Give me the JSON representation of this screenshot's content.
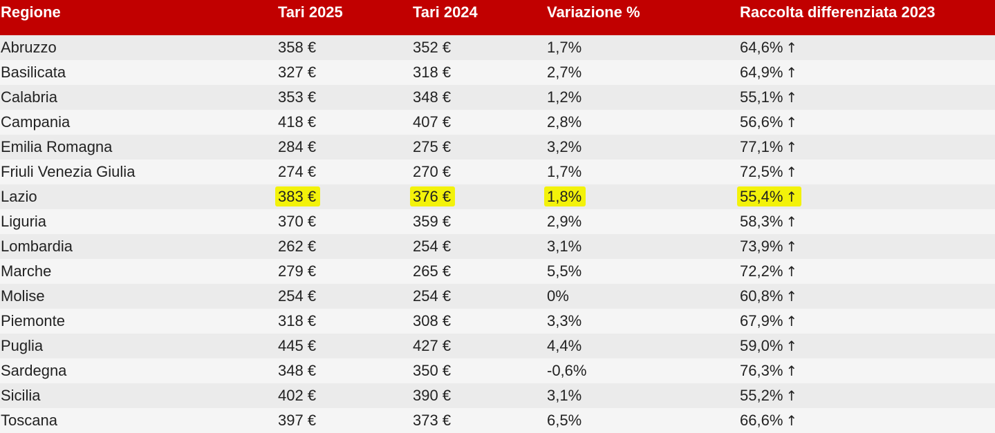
{
  "columns": [
    "Regione",
    "Tari 2025",
    "Tari 2024",
    "Variazione %",
    "Raccolta differenziata 2023"
  ],
  "trend_symbol": "↑",
  "highlight_color": "#f3f20a",
  "header_color": "#c10000",
  "rows": [
    {
      "regione": "Abruzzo",
      "tari_2025": "358 €",
      "tari_2024": "352 €",
      "variazione": "1,7%",
      "raccolta": "64,6%"
    },
    {
      "regione": "Basilicata",
      "tari_2025": "327 €",
      "tari_2024": "318 €",
      "variazione": "2,7%",
      "raccolta": "64,9%"
    },
    {
      "regione": "Calabria",
      "tari_2025": "353 €",
      "tari_2024": "348 €",
      "variazione": "1,2%",
      "raccolta": "55,1%"
    },
    {
      "regione": "Campania",
      "tari_2025": "418 €",
      "tari_2024": "407 €",
      "variazione": "2,8%",
      "raccolta": "56,6%"
    },
    {
      "regione": "Emilia Romagna",
      "tari_2025": "284 €",
      "tari_2024": "275 €",
      "variazione": "3,2%",
      "raccolta": "77,1%"
    },
    {
      "regione": "Friuli Venezia Giulia",
      "tari_2025": "274 €",
      "tari_2024": "270 €",
      "variazione": "1,7%",
      "raccolta": "72,5%"
    },
    {
      "regione": "Lazio",
      "tari_2025": "383 €",
      "tari_2024": "376 €",
      "variazione": "1,8%",
      "raccolta": "55,4%",
      "highlighted": true
    },
    {
      "regione": "Liguria",
      "tari_2025": "370 €",
      "tari_2024": "359 €",
      "variazione": "2,9%",
      "raccolta": "58,3%"
    },
    {
      "regione": "Lombardia",
      "tari_2025": "262 €",
      "tari_2024": "254 €",
      "variazione": "3,1%",
      "raccolta": "73,9%"
    },
    {
      "regione": "Marche",
      "tari_2025": "279 €",
      "tari_2024": "265 €",
      "variazione": "5,5%",
      "raccolta": "72,2%"
    },
    {
      "regione": "Molise",
      "tari_2025": "254 €",
      "tari_2024": "254 €",
      "variazione": "0%",
      "raccolta": "60,8%"
    },
    {
      "regione": "Piemonte",
      "tari_2025": "318 €",
      "tari_2024": "308 €",
      "variazione": "3,3%",
      "raccolta": "67,9%"
    },
    {
      "regione": "Puglia",
      "tari_2025": "445 €",
      "tari_2024": "427 €",
      "variazione": "4,4%",
      "raccolta": "59,0%"
    },
    {
      "regione": "Sardegna",
      "tari_2025": "348 €",
      "tari_2024": "350 €",
      "variazione": "-0,6%",
      "raccolta": "76,3%"
    },
    {
      "regione": "Sicilia",
      "tari_2025": "402 €",
      "tari_2024": "390 €",
      "variazione": "3,1%",
      "raccolta": "55,2%"
    },
    {
      "regione": "Toscana",
      "tari_2025": "397 €",
      "tari_2024": "373 €",
      "variazione": "6,5%",
      "raccolta": "66,6%"
    }
  ]
}
